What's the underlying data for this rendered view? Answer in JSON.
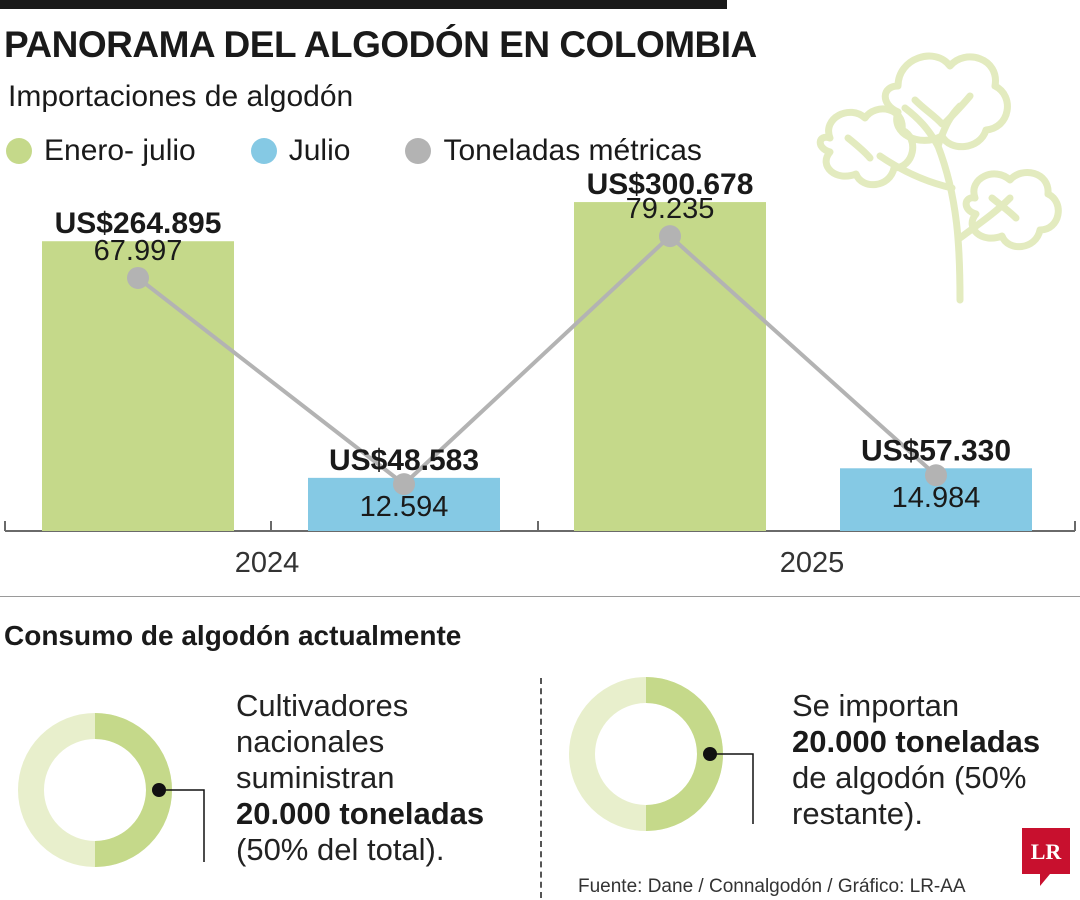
{
  "header": {
    "title": "PANORAMA DEL ALGODÓN EN COLOMBIA",
    "subtitle": "Importaciones de algodón"
  },
  "legend": [
    {
      "label": "Enero- julio",
      "color": "#c5d98a"
    },
    {
      "label": "Julio",
      "color": "#85c9e4"
    },
    {
      "label": "Toneladas métricas",
      "color": "#b3b3b3"
    }
  ],
  "chart_data": {
    "type": "bar",
    "title": "Importaciones de algodón",
    "categories": [
      "2024",
      "2025"
    ],
    "series": [
      {
        "name": "Enero- julio",
        "color": "#c5d98a",
        "values": [
          264895,
          300678
        ],
        "labels": [
          "US$264.895",
          "US$300.678"
        ]
      },
      {
        "name": "Julio",
        "color": "#85c9e4",
        "values": [
          48583,
          57330
        ],
        "labels": [
          "US$48.583",
          "US$57.330"
        ]
      }
    ],
    "line": {
      "name": "Toneladas métricas",
      "color": "#b3b3b3",
      "values": [
        67997,
        12594,
        79235,
        14984
      ],
      "labels": [
        "67.997",
        "12.594",
        "79.235",
        "14.984"
      ]
    },
    "ylim": [
      0,
      330000
    ],
    "line_ylim": [
      0,
      97000
    ],
    "xlabel": "",
    "ylabel": "",
    "grid": false,
    "legend_position": "top-left"
  },
  "consumption": {
    "title": "Consumo de algodón actualmente",
    "left": {
      "share": 0.5,
      "lines": [
        "Cultivadores",
        "nacionales",
        "suministran"
      ],
      "bold": "20.000 toneladas",
      "tail": "(50% del total)."
    },
    "right": {
      "share": 0.5,
      "line1": "Se importan",
      "bold": "20.000 toneladas",
      "lines": [
        "de algodón (50%",
        "restante)."
      ]
    }
  },
  "source": "Fuente: Dane / Connalgodón / Gráfico: LR-AA",
  "logo": {
    "text": "LR",
    "color": "#c8102e"
  }
}
